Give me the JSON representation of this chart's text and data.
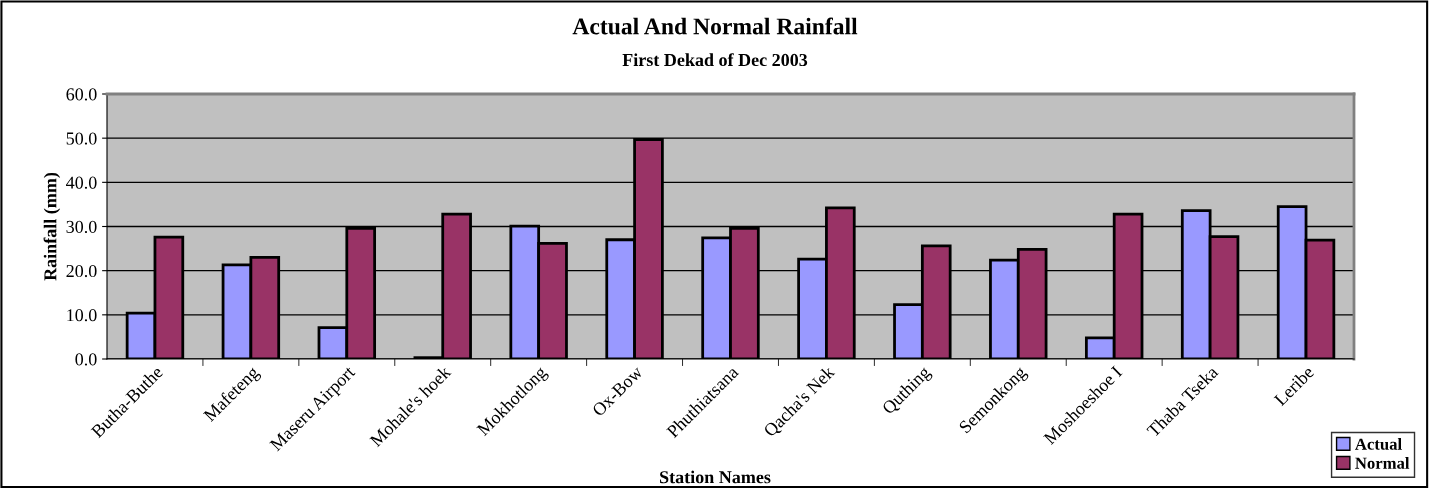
{
  "chart_data": {
    "type": "bar",
    "title": "Actual And Normal Rainfall",
    "subtitle": "First Dekad of Dec 2003",
    "xlabel": "Station Names",
    "ylabel": "Rainfall (mm)",
    "categories": [
      "Butha-Buthe",
      "Mafeteng",
      "Maseru Airport",
      "Mohale's hoek",
      "Mokhotlong",
      "Ox-Bow",
      "Phuthiatsana",
      "Qacha's Nek",
      "Quthing",
      "Semonkong",
      "Moshoeshoe I",
      "Thaba Tseka",
      "Leribe"
    ],
    "series": [
      {
        "name": "Actual",
        "color": "#9999ff",
        "values": [
          10.4,
          21.3,
          7.1,
          0.3,
          30.1,
          27.0,
          27.4,
          22.6,
          12.3,
          22.4,
          4.8,
          33.6,
          34.5
        ]
      },
      {
        "name": "Normal",
        "color": "#993366",
        "values": [
          27.6,
          23.0,
          29.6,
          32.8,
          26.2,
          49.7,
          29.6,
          34.2,
          25.6,
          24.8,
          32.8,
          27.7,
          26.9
        ]
      }
    ],
    "ylim": [
      0,
      60
    ],
    "yticks": [
      {
        "value": 0,
        "label": "0.0"
      },
      {
        "value": 10,
        "label": "10.0"
      },
      {
        "value": 20,
        "label": "20.0"
      },
      {
        "value": 30,
        "label": "30.0"
      },
      {
        "value": 40,
        "label": "40.0"
      },
      {
        "value": 50,
        "label": "50.0"
      },
      {
        "value": 60,
        "label": "60.0"
      }
    ],
    "grid": "y",
    "legend": "bottom right"
  }
}
